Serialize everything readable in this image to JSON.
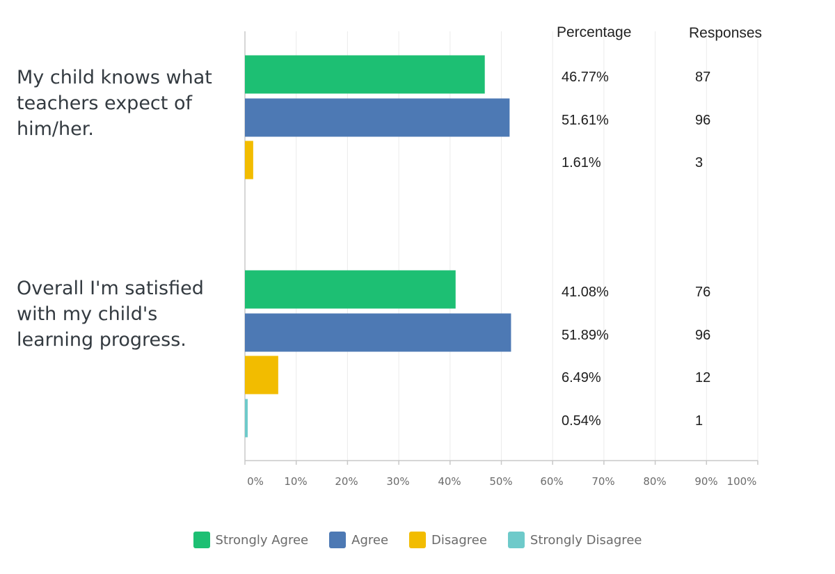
{
  "chart_data": {
    "type": "bar",
    "orientation": "horizontal",
    "xlim": [
      0,
      100
    ],
    "x_ticks": [
      "0%",
      "10%",
      "20%",
      "30%",
      "40%",
      "50%",
      "60%",
      "70%",
      "80%",
      "90%",
      "100%"
    ],
    "grid": true,
    "legend_position": "bottom",
    "table_headers": {
      "percentage": "Percentage",
      "responses": "Responses"
    },
    "series": [
      {
        "name": "Strongly Agree",
        "color": "#1dbf73"
      },
      {
        "name": "Agree",
        "color": "#4d79b4"
      },
      {
        "name": "Disagree",
        "color": "#f2bc00"
      },
      {
        "name": "Strongly Disagree",
        "color": "#6ecaca"
      }
    ],
    "questions": [
      {
        "label_lines": [
          "My child knows what",
          "teachers expect of",
          "him/her."
        ],
        "rows": [
          {
            "series": "Strongly Agree",
            "value": 46.77,
            "percent_label": "46.77%",
            "responses": "87"
          },
          {
            "series": "Agree",
            "value": 51.61,
            "percent_label": "51.61%",
            "responses": "96"
          },
          {
            "series": "Disagree",
            "value": 1.61,
            "percent_label": "1.61%",
            "responses": "3"
          }
        ]
      },
      {
        "label_lines": [
          "Overall I'm satisfied",
          "with my child's",
          "learning progress."
        ],
        "rows": [
          {
            "series": "Strongly Agree",
            "value": 41.08,
            "percent_label": "41.08%",
            "responses": "76"
          },
          {
            "series": "Agree",
            "value": 51.89,
            "percent_label": "51.89%",
            "responses": "96"
          },
          {
            "series": "Disagree",
            "value": 6.49,
            "percent_label": "6.49%",
            "responses": "12"
          },
          {
            "series": "Strongly Disagree",
            "value": 0.54,
            "percent_label": "0.54%",
            "responses": "1"
          }
        ]
      }
    ]
  }
}
